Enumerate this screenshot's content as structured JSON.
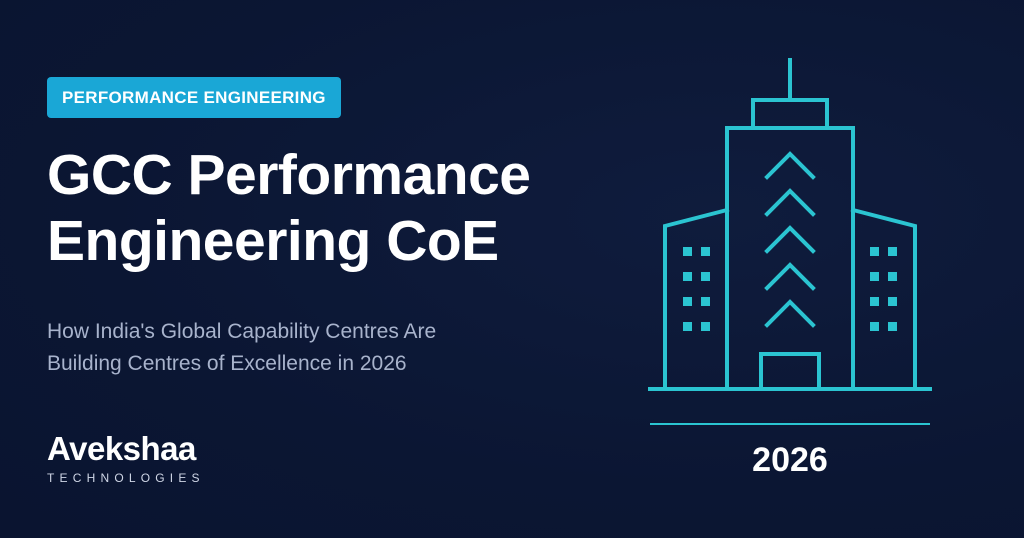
{
  "category": "PERFORMANCE ENGINEERING",
  "headline": {
    "line1": "GCC Performance",
    "line2": "Engineering CoE"
  },
  "subtitle": {
    "line1": "How India's Global Capability Centres Are",
    "line2": "Building Centres of Excellence in 2026"
  },
  "brand": {
    "name": "Avekshaa",
    "tagline": "TECHNOLOGIES"
  },
  "year": "2026",
  "colors": {
    "background": "#0b1633",
    "accent": "#1aa7d6",
    "illustration": "#2bc4d1",
    "text": "#ffffff",
    "muted_text": "#a8b3cc"
  },
  "illustration": "office-building-icon"
}
